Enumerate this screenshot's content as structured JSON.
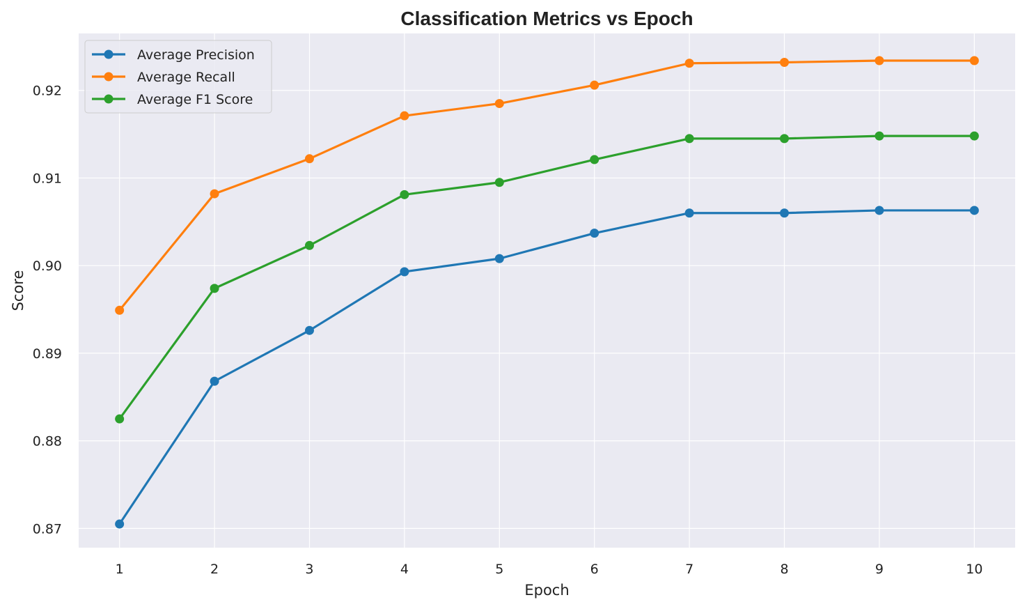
{
  "chart_data": {
    "type": "line",
    "title": "Classification Metrics vs Epoch",
    "xlabel": "Epoch",
    "ylabel": "Score",
    "x": [
      1,
      2,
      3,
      4,
      5,
      6,
      7,
      8,
      9,
      10
    ],
    "xlim": [
      0.57,
      10.43
    ],
    "ylim": [
      0.8678,
      0.9265
    ],
    "xticks": [
      "1",
      "2",
      "3",
      "4",
      "5",
      "6",
      "7",
      "8",
      "9",
      "10"
    ],
    "yticks": [
      0.87,
      0.88,
      0.89,
      0.9,
      0.91,
      0.92
    ],
    "ytick_labels": [
      "0.87",
      "0.88",
      "0.89",
      "0.90",
      "0.91",
      "0.92"
    ],
    "grid": true,
    "legend_position": "top-left",
    "marker": "circle",
    "series": [
      {
        "name": "Average Precision",
        "color": "#1f77b4",
        "values": [
          0.8705,
          0.8868,
          0.8926,
          0.8993,
          0.9008,
          0.9037,
          0.906,
          0.906,
          0.9063,
          0.9063
        ]
      },
      {
        "name": "Average Recall",
        "color": "#ff7f0e",
        "values": [
          0.8949,
          0.9082,
          0.9122,
          0.9171,
          0.9185,
          0.9206,
          0.9231,
          0.9232,
          0.9234,
          0.9234
        ]
      },
      {
        "name": "Average F1 Score",
        "color": "#2ca02c",
        "values": [
          0.8825,
          0.8974,
          0.9023,
          0.9081,
          0.9095,
          0.9121,
          0.9145,
          0.9145,
          0.9148,
          0.9148
        ]
      }
    ],
    "colors": {
      "plot_background": "#eaeaf2",
      "grid": "#ffffff"
    }
  }
}
